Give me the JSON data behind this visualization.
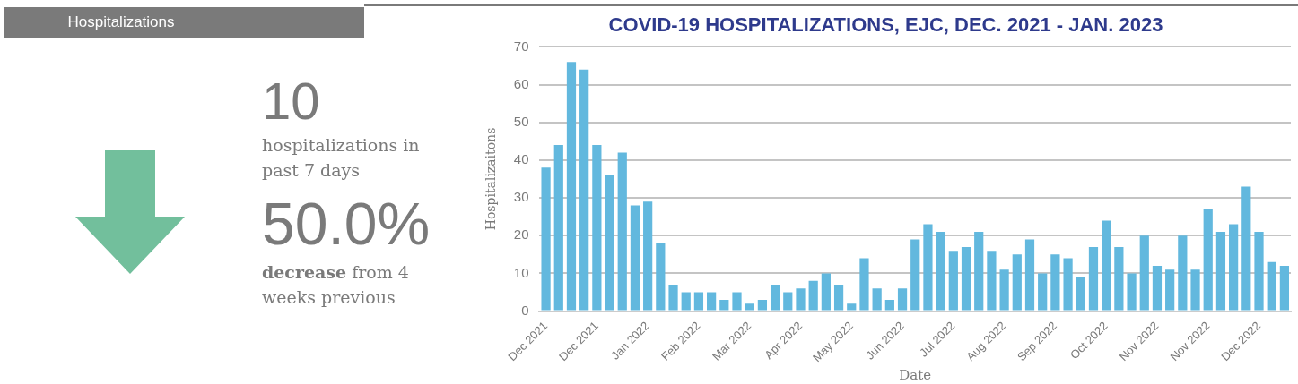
{
  "chart_data": [
    {
      "type": "other",
      "title": "Hospitalizations",
      "annotations": [
        "10",
        "hospitalizations in past 7 days",
        "50.0%",
        "decrease",
        "from 4 weeks previous"
      ]
    },
    {
      "type": "bar",
      "title": "COVID-19 HOSPITALIZATIONS, EJC, DEC. 2021 - JAN. 2023",
      "xlabel": "Date",
      "ylabel": "Hospitalizaitons",
      "categories": [
        "Dec 2021",
        null,
        null,
        null,
        "Dec 2021",
        null,
        null,
        null,
        "Jan 2022",
        null,
        null,
        null,
        "Feb 2022",
        null,
        null,
        null,
        "Mar 2022",
        null,
        null,
        null,
        "Apr 2022",
        null,
        null,
        null,
        "May 2022",
        null,
        null,
        null,
        "Jun 2022",
        null,
        null,
        null,
        "Jul 2022",
        null,
        null,
        null,
        "Aug 2022",
        null,
        null,
        null,
        "Sep 2022",
        null,
        null,
        null,
        "Oct 2022",
        null,
        null,
        null,
        "Nov 2022",
        null,
        null,
        null,
        "Nov 2022",
        null,
        null,
        null,
        "Dec 2022",
        null,
        null
      ],
      "values": [
        38,
        44,
        66,
        64,
        44,
        36,
        42,
        28,
        29,
        18,
        7,
        5,
        5,
        5,
        3,
        5,
        2,
        3,
        7,
        5,
        6,
        8,
        10,
        7,
        2,
        14,
        6,
        3,
        6,
        19,
        23,
        21,
        16,
        17,
        21,
        16,
        11,
        15,
        19,
        10,
        15,
        14,
        9,
        17,
        24,
        17,
        10,
        20,
        12,
        11,
        20,
        11,
        27,
        21,
        23,
        33,
        21,
        13,
        12
      ],
      "color": "#62b8de",
      "ylim": [
        0,
        70
      ],
      "yticks": [
        0,
        10,
        20,
        30,
        40,
        50,
        60,
        70
      ],
      "grid": "y"
    }
  ]
}
